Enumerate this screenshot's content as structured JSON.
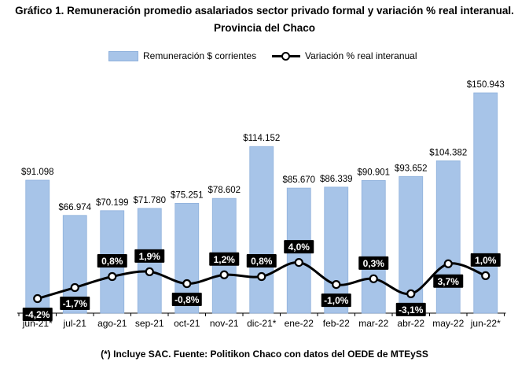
{
  "title_line1": "Gráfico 1. Remuneración promedio asalariados sector privado formal y variación % real interanual.",
  "title_line2": "Provincia del Chaco",
  "footnote": "(*) Incluye SAC. Fuente: Politikon Chaco con datos del OEDE de MTEySS",
  "colors": {
    "bar": "#a7c4e8",
    "bar_edge": "#8fb1dc",
    "line": "#000000",
    "label_box": "#000000",
    "label_text": "#ffffff"
  },
  "chart_data": {
    "type": "bar",
    "categories": [
      "jun-21*",
      "jul-21",
      "ago-21",
      "sep-21",
      "oct-21",
      "nov-21",
      "dic-21*",
      "ene-22",
      "feb-22",
      "mar-22",
      "abr-22",
      "may-22",
      "jun-22*"
    ],
    "series": [
      {
        "name": "Remuneración $ corrientes",
        "type": "bar",
        "values": [
          91098,
          66974,
          70199,
          71780,
          75251,
          78602,
          114152,
          85670,
          86339,
          90901,
          93652,
          104382,
          150943
        ],
        "labels": [
          "$91.098",
          "$66.974",
          "$70.199",
          "$71.780",
          "$75.251",
          "$78.602",
          "$114.152",
          "$85.670",
          "$86.339",
          "$90.901",
          "$93.652",
          "$104.382",
          "$150.943"
        ]
      },
      {
        "name": "Variación % real interanual",
        "type": "line",
        "values": [
          -4.2,
          -1.7,
          0.8,
          1.9,
          -0.8,
          1.2,
          0.8,
          4.0,
          -1.0,
          0.3,
          -3.1,
          3.7,
          1.0
        ],
        "labels": [
          "-4,2%",
          "-1,7%",
          "0,8%",
          "1,9%",
          "-0,8%",
          "1,2%",
          "0,8%",
          "4,0%",
          "-1,0%",
          "0,3%",
          "-3,1%",
          "3,7%",
          "1,0%"
        ]
      }
    ],
    "legend_position": "top"
  }
}
